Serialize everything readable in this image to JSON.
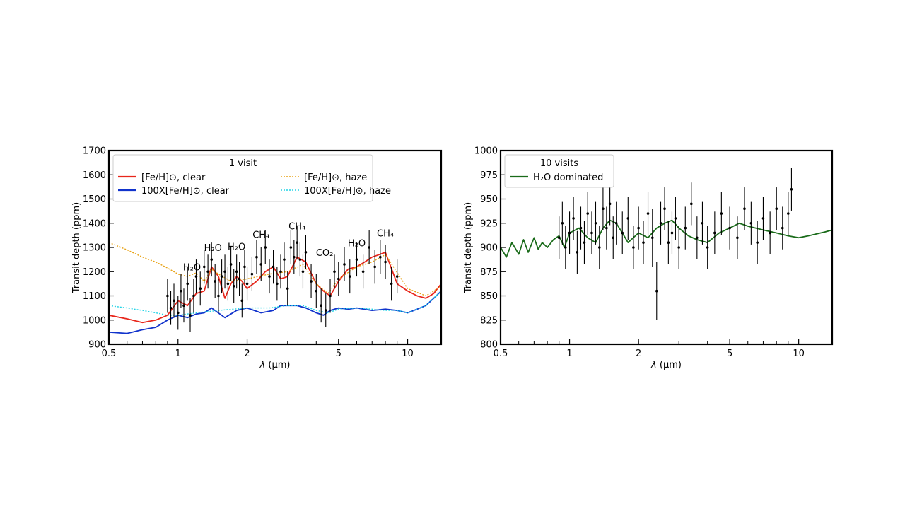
{
  "chart_data": [
    {
      "type": "line",
      "xscale": "log",
      "xlim": [
        0.5,
        14
      ],
      "ylim": [
        900,
        1700
      ],
      "xlabel": "λ (μm)",
      "ylabel": "Transit depth (ppm)",
      "xticks": [
        0.5,
        1,
        2,
        5,
        10
      ],
      "yticks": [
        900,
        1000,
        1100,
        1200,
        1300,
        1400,
        1500,
        1600,
        1700
      ],
      "legend": {
        "title": "1 visit",
        "placement": "top-left",
        "entries": [
          {
            "label": "[Fe/H]⊙, clear",
            "color": "#e8261b",
            "style": "solid"
          },
          {
            "label": "100X[Fe/H]⊙, clear",
            "color": "#1133cc",
            "style": "solid"
          },
          {
            "label": "[Fe/H]⊙, haze",
            "color": "#e8a317",
            "style": "dotted"
          },
          {
            "label": "100X[Fe/H]⊙, haze",
            "color": "#22d3e6",
            "style": "dotted"
          }
        ]
      },
      "series": [
        {
          "name": "[Fe/H]⊙, clear",
          "color": "#e8261b",
          "style": "solid",
          "x": [
            0.5,
            0.6,
            0.7,
            0.8,
            0.9,
            1.0,
            1.1,
            1.2,
            1.3,
            1.4,
            1.5,
            1.6,
            1.7,
            1.8,
            1.9,
            2.0,
            2.2,
            2.4,
            2.6,
            2.8,
            3.0,
            3.3,
            3.6,
            4.0,
            4.3,
            4.6,
            5.0,
            5.5,
            6.0,
            6.5,
            7.0,
            7.5,
            8.0,
            9.0,
            10.0,
            11.0,
            12.0,
            13.0,
            14.0
          ],
          "y": [
            1020,
            1005,
            990,
            1000,
            1020,
            1080,
            1060,
            1110,
            1120,
            1220,
            1180,
            1090,
            1150,
            1180,
            1160,
            1130,
            1160,
            1200,
            1220,
            1170,
            1180,
            1260,
            1240,
            1150,
            1120,
            1100,
            1160,
            1210,
            1220,
            1240,
            1260,
            1270,
            1280,
            1150,
            1120,
            1100,
            1090,
            1110,
            1150
          ]
        },
        {
          "name": "100X[Fe/H]⊙, clear",
          "color": "#1133cc",
          "style": "solid",
          "x": [
            0.5,
            0.6,
            0.7,
            0.8,
            0.9,
            1.0,
            1.1,
            1.2,
            1.3,
            1.4,
            1.6,
            1.8,
            2.0,
            2.3,
            2.6,
            2.8,
            3.0,
            3.3,
            3.6,
            4.0,
            4.3,
            4.6,
            5.0,
            5.5,
            6.0,
            7.0,
            8.0,
            9.0,
            10.0,
            11.0,
            12.0,
            13.0,
            14.0
          ],
          "y": [
            950,
            945,
            960,
            970,
            1000,
            1020,
            1010,
            1025,
            1030,
            1050,
            1010,
            1040,
            1050,
            1030,
            1040,
            1060,
            1060,
            1060,
            1050,
            1030,
            1020,
            1040,
            1050,
            1045,
            1050,
            1040,
            1045,
            1040,
            1030,
            1045,
            1060,
            1090,
            1120
          ]
        },
        {
          "name": "[Fe/H]⊙, haze",
          "color": "#e8a317",
          "style": "dotted",
          "x": [
            0.5,
            0.6,
            0.7,
            0.8,
            0.9,
            1.0,
            1.1,
            1.2,
            1.3,
            1.4,
            1.5,
            1.7,
            2.0,
            2.5,
            3.0,
            3.5,
            4.0,
            4.5,
            5.0,
            6.0,
            7.0,
            8.0,
            10.0,
            12.0,
            14.0
          ],
          "y": [
            1320,
            1290,
            1260,
            1240,
            1215,
            1190,
            1180,
            1195,
            1160,
            1210,
            1190,
            1160,
            1170,
            1190,
            1200,
            1230,
            1150,
            1110,
            1170,
            1220,
            1240,
            1270,
            1130,
            1100,
            1140
          ]
        },
        {
          "name": "100X[Fe/H]⊙, haze",
          "color": "#22d3e6",
          "style": "dotted",
          "x": [
            0.5,
            0.6,
            0.7,
            0.8,
            0.9,
            1.0,
            1.2,
            1.5,
            2.0,
            2.5,
            3.0,
            3.5,
            4.0,
            4.5,
            5.0,
            6.0,
            7.0,
            8.0,
            9.0,
            10.0,
            12.0,
            14.0
          ],
          "y": [
            1060,
            1050,
            1040,
            1030,
            1020,
            1020,
            1030,
            1040,
            1050,
            1050,
            1060,
            1060,
            1040,
            1030,
            1045,
            1050,
            1045,
            1040,
            1040,
            1030,
            1060,
            1120
          ]
        },
        {
          "name": "",
          "color": "#000000",
          "style": "errorbar",
          "x": [
            0.9,
            0.93,
            0.96,
            1.0,
            1.03,
            1.06,
            1.1,
            1.13,
            1.17,
            1.2,
            1.25,
            1.3,
            1.35,
            1.4,
            1.45,
            1.5,
            1.55,
            1.6,
            1.65,
            1.7,
            1.75,
            1.8,
            1.85,
            1.9,
            1.95,
            2.0,
            2.1,
            2.2,
            2.3,
            2.4,
            2.5,
            2.6,
            2.7,
            2.8,
            2.9,
            3.0,
            3.1,
            3.2,
            3.3,
            3.4,
            3.5,
            3.6,
            3.8,
            4.0,
            4.2,
            4.4,
            4.6,
            4.8,
            5.0,
            5.3,
            5.6,
            6.0,
            6.4,
            6.8,
            7.2,
            7.6,
            8.0,
            8.5,
            9.0
          ],
          "y": [
            1100,
            1050,
            1080,
            1030,
            1120,
            1060,
            1150,
            1020,
            1100,
            1180,
            1130,
            1220,
            1200,
            1250,
            1160,
            1100,
            1180,
            1200,
            1150,
            1230,
            1140,
            1200,
            1170,
            1080,
            1220,
            1150,
            1190,
            1260,
            1230,
            1300,
            1180,
            1220,
            1150,
            1200,
            1250,
            1130,
            1300,
            1260,
            1320,
            1250,
            1200,
            1280,
            1160,
            1120,
            1060,
            1040,
            1100,
            1200,
            1170,
            1230,
            1180,
            1250,
            1200,
            1300,
            1220,
            1260,
            1240,
            1150,
            1180
          ],
          "err": [
            70,
            70,
            70,
            70,
            70,
            70,
            70,
            70,
            70,
            70,
            70,
            70,
            70,
            70,
            70,
            70,
            70,
            70,
            70,
            70,
            70,
            70,
            70,
            70,
            70,
            70,
            70,
            70,
            70,
            70,
            70,
            70,
            70,
            70,
            70,
            70,
            70,
            70,
            70,
            70,
            70,
            70,
            70,
            70,
            70,
            70,
            70,
            70,
            70,
            70,
            70,
            70,
            70,
            70,
            70,
            70,
            70,
            70,
            70
          ]
        }
      ],
      "annotations": [
        {
          "text": "H₂O",
          "x": 1.15,
          "y": 1205
        },
        {
          "text": "H₂O",
          "x": 1.42,
          "y": 1285
        },
        {
          "text": "H₂O",
          "x": 1.8,
          "y": 1290
        },
        {
          "text": "CH₄",
          "x": 2.3,
          "y": 1340
        },
        {
          "text": "CH₄",
          "x": 3.3,
          "y": 1375
        },
        {
          "text": "CO₂",
          "x": 4.35,
          "y": 1265
        },
        {
          "text": "H₂O",
          "x": 6.0,
          "y": 1305
        },
        {
          "text": "CH₄",
          "x": 8.0,
          "y": 1345
        }
      ]
    },
    {
      "type": "line",
      "xscale": "log",
      "xlim": [
        0.5,
        14
      ],
      "ylim": [
        800,
        1000
      ],
      "xlabel": "λ (μm)",
      "ylabel": "Transit depth (ppm)",
      "xticks": [
        0.5,
        1,
        2,
        5,
        10
      ],
      "yticks": [
        800,
        825,
        850,
        875,
        900,
        925,
        950,
        975,
        1000
      ],
      "legend": {
        "title": "10 visits",
        "placement": "top-left",
        "entries": [
          {
            "label": "H₂O dominated",
            "color": "#1a6b1a",
            "style": "solid"
          }
        ]
      },
      "series": [
        {
          "name": "H₂O dominated",
          "color": "#1a6b1a",
          "style": "solid",
          "x": [
            0.5,
            0.53,
            0.56,
            0.6,
            0.63,
            0.66,
            0.7,
            0.73,
            0.76,
            0.8,
            0.85,
            0.9,
            0.95,
            1.0,
            1.1,
            1.2,
            1.3,
            1.4,
            1.5,
            1.6,
            1.7,
            1.8,
            2.0,
            2.2,
            2.4,
            2.6,
            2.8,
            3.0,
            3.3,
            3.6,
            4.0,
            4.5,
            5.0,
            5.5,
            6.0,
            7.0,
            8.0,
            9.0,
            10.0,
            11.0,
            12.0,
            13.0,
            14.0
          ],
          "y": [
            900,
            890,
            905,
            893,
            908,
            895,
            910,
            898,
            905,
            900,
            908,
            912,
            900,
            915,
            920,
            910,
            905,
            920,
            928,
            925,
            915,
            905,
            915,
            910,
            920,
            925,
            928,
            920,
            912,
            908,
            905,
            915,
            920,
            925,
            922,
            918,
            915,
            912,
            910,
            912,
            914,
            916,
            918
          ]
        },
        {
          "name": "",
          "color": "#000000",
          "style": "errorbar",
          "x": [
            0.9,
            0.93,
            0.96,
            1.0,
            1.04,
            1.08,
            1.12,
            1.16,
            1.2,
            1.25,
            1.3,
            1.35,
            1.4,
            1.45,
            1.5,
            1.55,
            1.6,
            1.7,
            1.8,
            1.9,
            2.0,
            2.1,
            2.2,
            2.3,
            2.4,
            2.5,
            2.6,
            2.7,
            2.8,
            2.9,
            3.0,
            3.2,
            3.4,
            3.6,
            3.8,
            4.0,
            4.3,
            4.6,
            5.0,
            5.4,
            5.8,
            6.2,
            6.6,
            7.0,
            7.5,
            8.0,
            8.5,
            9.0,
            9.3
          ],
          "y": [
            910,
            925,
            900,
            915,
            930,
            895,
            920,
            905,
            935,
            915,
            925,
            900,
            940,
            920,
            945,
            910,
            925,
            915,
            930,
            900,
            920,
            905,
            935,
            910,
            855,
            925,
            940,
            905,
            915,
            930,
            900,
            920,
            945,
            910,
            925,
            900,
            915,
            935,
            920,
            910,
            940,
            925,
            905,
            930,
            915,
            940,
            920,
            935,
            960
          ],
          "err": [
            22,
            22,
            22,
            22,
            22,
            22,
            22,
            22,
            22,
            22,
            22,
            22,
            22,
            22,
            22,
            22,
            22,
            22,
            22,
            22,
            22,
            22,
            22,
            30,
            30,
            22,
            22,
            22,
            22,
            22,
            22,
            22,
            22,
            22,
            22,
            22,
            22,
            22,
            22,
            22,
            22,
            22,
            22,
            22,
            22,
            22,
            22,
            22,
            22
          ]
        }
      ]
    }
  ]
}
